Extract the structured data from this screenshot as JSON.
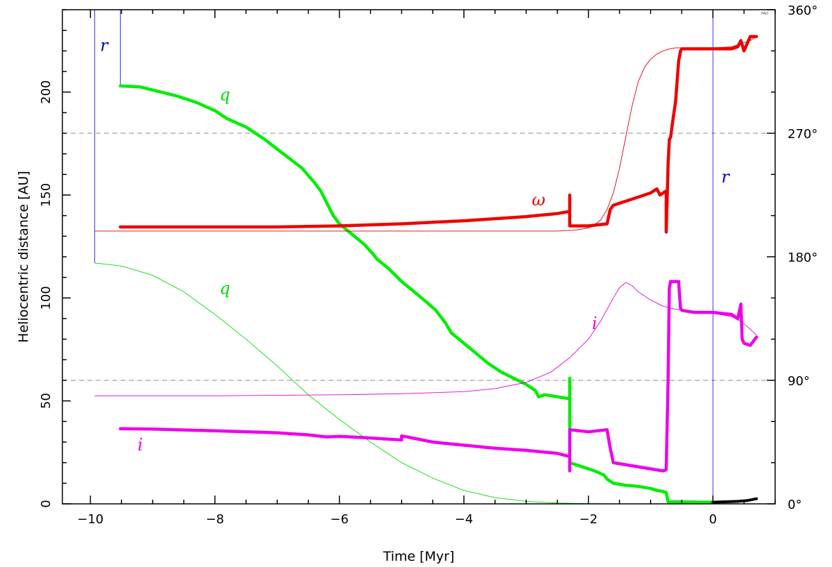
{
  "chart_data": {
    "type": "line",
    "xlabel": "Time [Myr]",
    "ylabel": "Heliocentric distance [AU]",
    "xlim": [
      -10.45,
      1.0
    ],
    "ylim": [
      0,
      240
    ],
    "y2lim": [
      0,
      360
    ],
    "x_ticks": [
      {
        "value": -10,
        "label": "−10"
      },
      {
        "value": -8,
        "label": "−8"
      },
      {
        "value": -6,
        "label": "−6"
      },
      {
        "value": -4,
        "label": "−4"
      },
      {
        "value": -2,
        "label": "−2"
      },
      {
        "value": 0,
        "label": "0"
      }
    ],
    "y_ticks": [
      {
        "value": 0,
        "label": "0"
      },
      {
        "value": 50,
        "label": "50"
      },
      {
        "value": 100,
        "label": "100"
      },
      {
        "value": 150,
        "label": "150"
      },
      {
        "value": 200,
        "label": "200"
      }
    ],
    "y2_ticks": [
      {
        "value": 0,
        "label": "0°"
      },
      {
        "value": 90,
        "label": "90°"
      },
      {
        "value": 180,
        "label": "180°"
      },
      {
        "value": 270,
        "label": "270°"
      },
      {
        "value": 360,
        "label": "360°"
      }
    ],
    "reference_lines_y2": [
      90,
      270
    ],
    "corner_mark": "PAD",
    "series": [
      {
        "key": "r_thin",
        "color": "#0000ee",
        "width": 0.8,
        "x": [
          -9.93,
          -9.93,
          -9.93,
          -9.93
        ],
        "y": [
          117,
          240,
          240,
          117
        ]
      },
      {
        "key": "r_thin_b",
        "color": "#0000ee",
        "width": 0.8,
        "x": [
          -9.52,
          -9.52
        ],
        "y": [
          203,
          240
        ]
      },
      {
        "key": "r_thin_c",
        "color": "#0000ee",
        "width": 0.8,
        "x": [
          0.0,
          0.0
        ],
        "y": [
          0,
          240
        ]
      },
      {
        "key": "q_thick",
        "color": "#00ee00",
        "width": 4.5,
        "x": [
          -9.52,
          -9.2,
          -9.0,
          -8.6,
          -8.3,
          -8.0,
          -7.8,
          -7.5,
          -7.2,
          -6.9,
          -6.6,
          -6.4,
          -6.3,
          -6.2,
          -6.1,
          -6.0,
          -5.8,
          -5.6,
          -5.45,
          -5.4,
          -5.2,
          -5.0,
          -4.8,
          -4.6,
          -4.45,
          -4.4,
          -4.3,
          -4.2,
          -4.0,
          -3.8,
          -3.6,
          -3.4,
          -3.2,
          -3.0,
          -2.85,
          -2.8,
          -2.7,
          -2.5,
          -2.3
        ],
        "y": [
          203,
          202.5,
          201,
          198,
          195,
          191,
          187,
          183,
          177,
          170,
          163,
          156,
          152,
          146,
          140,
          136,
          131,
          126,
          121,
          119,
          114,
          108,
          103,
          98,
          94,
          92,
          88,
          83,
          78,
          73,
          68,
          64,
          61,
          58,
          55,
          52,
          53,
          52,
          51
        ]
      },
      {
        "key": "q_thick_drop",
        "color": "#00ee00",
        "width": 4.5,
        "x": [
          -2.3,
          -2.3,
          -2.3,
          -2.3
        ],
        "y": [
          51,
          61,
          28,
          20
        ]
      },
      {
        "key": "q_thick_low",
        "color": "#00ee00",
        "width": 4.5,
        "x": [
          -2.3,
          -2.1,
          -1.9,
          -1.75,
          -1.7,
          -1.6,
          -1.4,
          -1.2,
          -1.0,
          -0.9,
          -0.8,
          -0.75,
          -0.72,
          -0.5,
          -0.2,
          0.0
        ],
        "y": [
          20,
          18,
          16,
          14,
          12,
          10,
          9,
          8.5,
          7.5,
          6.5,
          6,
          5.5,
          1,
          1,
          0.8,
          0.8
        ]
      },
      {
        "key": "q_thin",
        "color": "#00dd00",
        "width": 0.9,
        "x": [
          -9.93,
          -9.5,
          -9.0,
          -8.5,
          -8.0,
          -7.5,
          -7.0,
          -6.5,
          -6.0,
          -5.5,
          -5.0,
          -4.5,
          -4.0,
          -3.5,
          -3.0,
          -2.5,
          -2.0,
          -1.5,
          -1.0,
          -0.8
        ],
        "y": [
          117,
          115.5,
          111,
          103,
          92,
          80,
          67,
          53,
          41,
          30,
          20,
          12.5,
          6.5,
          3,
          1.2,
          0.4,
          0.1,
          0,
          0,
          0
        ]
      },
      {
        "key": "black_tail",
        "color": "#000000",
        "width": 4,
        "x": [
          0.0,
          0.2,
          0.4,
          0.55,
          0.7
        ],
        "y": [
          0.8,
          1.0,
          1.2,
          1.6,
          2.5
        ]
      },
      {
        "key": "omega_thick",
        "color": "#ee0000",
        "width": 4.5,
        "x": [
          -9.52,
          -9.0,
          -8.0,
          -7.0,
          -6.0,
          -5.5,
          -5.0,
          -4.5,
          -4.0,
          -3.5,
          -3.0,
          -2.5,
          -2.3,
          -2.3,
          -2.3,
          -2.0,
          -1.7,
          -1.65,
          -1.6,
          -1.4,
          -1.2,
          -1.0,
          -0.9,
          -0.85,
          -0.75,
          -0.75,
          -0.72,
          -0.7,
          -0.68,
          -0.65,
          -0.6,
          -0.55,
          -0.52,
          -0.5,
          -0.3,
          0.0,
          0.3,
          0.4,
          0.45,
          0.5,
          0.6,
          0.7
        ],
        "y": [
          134.5,
          134.5,
          134.5,
          134.5,
          135,
          135.5,
          136,
          136.8,
          137.5,
          138.5,
          139.5,
          141,
          142,
          150,
          135,
          135,
          136,
          143,
          145,
          147,
          149,
          151,
          153,
          150,
          152,
          132,
          165,
          177,
          178,
          185,
          195,
          215,
          220,
          221,
          221,
          221,
          221,
          222,
          225,
          220,
          227,
          227
        ]
      },
      {
        "key": "omega_thin",
        "color": "#dd0000",
        "width": 0.9,
        "x": [
          -9.93,
          -8.0,
          -6.0,
          -4.0,
          -3.0,
          -2.5,
          -2.2,
          -2.0,
          -1.9,
          -1.8,
          -1.7,
          -1.6,
          -1.5,
          -1.4,
          -1.3,
          -1.2,
          -1.1,
          -1.0,
          -0.9,
          -0.8,
          -0.7,
          -0.6,
          -0.4,
          0.0,
          0.3,
          0.6,
          0.7
        ],
        "y": [
          132.5,
          132.5,
          132.5,
          132.5,
          132.5,
          132.5,
          133,
          134,
          135.5,
          138,
          143,
          151,
          163,
          178,
          193,
          205,
          212,
          216,
          218.5,
          220,
          221,
          221.5,
          221.5,
          221.5,
          222,
          225,
          227
        ]
      },
      {
        "key": "i_thick",
        "color": "#ee00ee",
        "width": 4.5,
        "x": [
          -9.52,
          -9.0,
          -8.0,
          -7.0,
          -6.5,
          -6.2,
          -6.0,
          -5.5,
          -5.0,
          -5.0,
          -4.5,
          -4.0,
          -3.5,
          -3.0,
          -2.5,
          -2.3,
          -2.3,
          -2.3,
          -2.0,
          -1.7,
          -1.65,
          -1.62,
          -1.6,
          -1.4,
          -1.2,
          -1.0,
          -0.8,
          -0.75,
          -0.72,
          -0.7,
          -0.68,
          -0.55,
          -0.52,
          -0.5,
          -0.3,
          0.0,
          0.3,
          0.4,
          0.45,
          0.47,
          0.5,
          0.6,
          0.7
        ],
        "y": [
          36.5,
          36.3,
          35.5,
          34.5,
          33.5,
          32.5,
          32.8,
          32,
          31,
          33,
          30,
          28.5,
          27,
          26,
          24.5,
          23,
          16,
          36,
          35,
          36,
          27,
          23,
          20,
          19,
          18,
          17,
          16,
          16.5,
          60,
          105,
          108,
          108,
          95,
          94,
          93,
          93,
          92,
          90,
          97,
          80,
          78,
          77,
          81
        ]
      },
      {
        "key": "i_thin",
        "color": "#dd00dd",
        "width": 0.9,
        "x": [
          -9.93,
          -8.0,
          -6.0,
          -5.0,
          -4.0,
          -3.5,
          -3.0,
          -2.6,
          -2.3,
          -2.0,
          -1.8,
          -1.6,
          -1.5,
          -1.4,
          -1.3,
          -1.2,
          -1.0,
          -0.8,
          -0.6,
          -0.4,
          0.0,
          0.3,
          0.5,
          0.7
        ],
        "y": [
          52.5,
          52.5,
          53,
          53.5,
          54.5,
          56,
          59,
          64,
          71,
          80,
          89,
          100,
          105,
          107.5,
          106,
          103,
          99,
          96,
          94.5,
          93.5,
          92.5,
          91,
          87.5,
          82
        ]
      }
    ],
    "annotations": [
      {
        "text": "r",
        "color": "#0000cc",
        "x": -9.78,
        "y": 220
      },
      {
        "text": "r",
        "color": "#0000cc",
        "x": 0.2,
        "y": 156
      },
      {
        "text": "q",
        "color": "#00dd00",
        "x": -7.84,
        "y": 196
      },
      {
        "text": "q",
        "color": "#00dd00",
        "x": -7.84,
        "y": 102
      },
      {
        "text": "ω",
        "color": "#ee0000",
        "x": -2.8,
        "y": 145
      },
      {
        "text": "i",
        "color": "#ee00ee",
        "x": -1.9,
        "y": 85
      },
      {
        "text": "i",
        "color": "#ee00ee",
        "x": -9.2,
        "y": 26
      }
    ]
  }
}
